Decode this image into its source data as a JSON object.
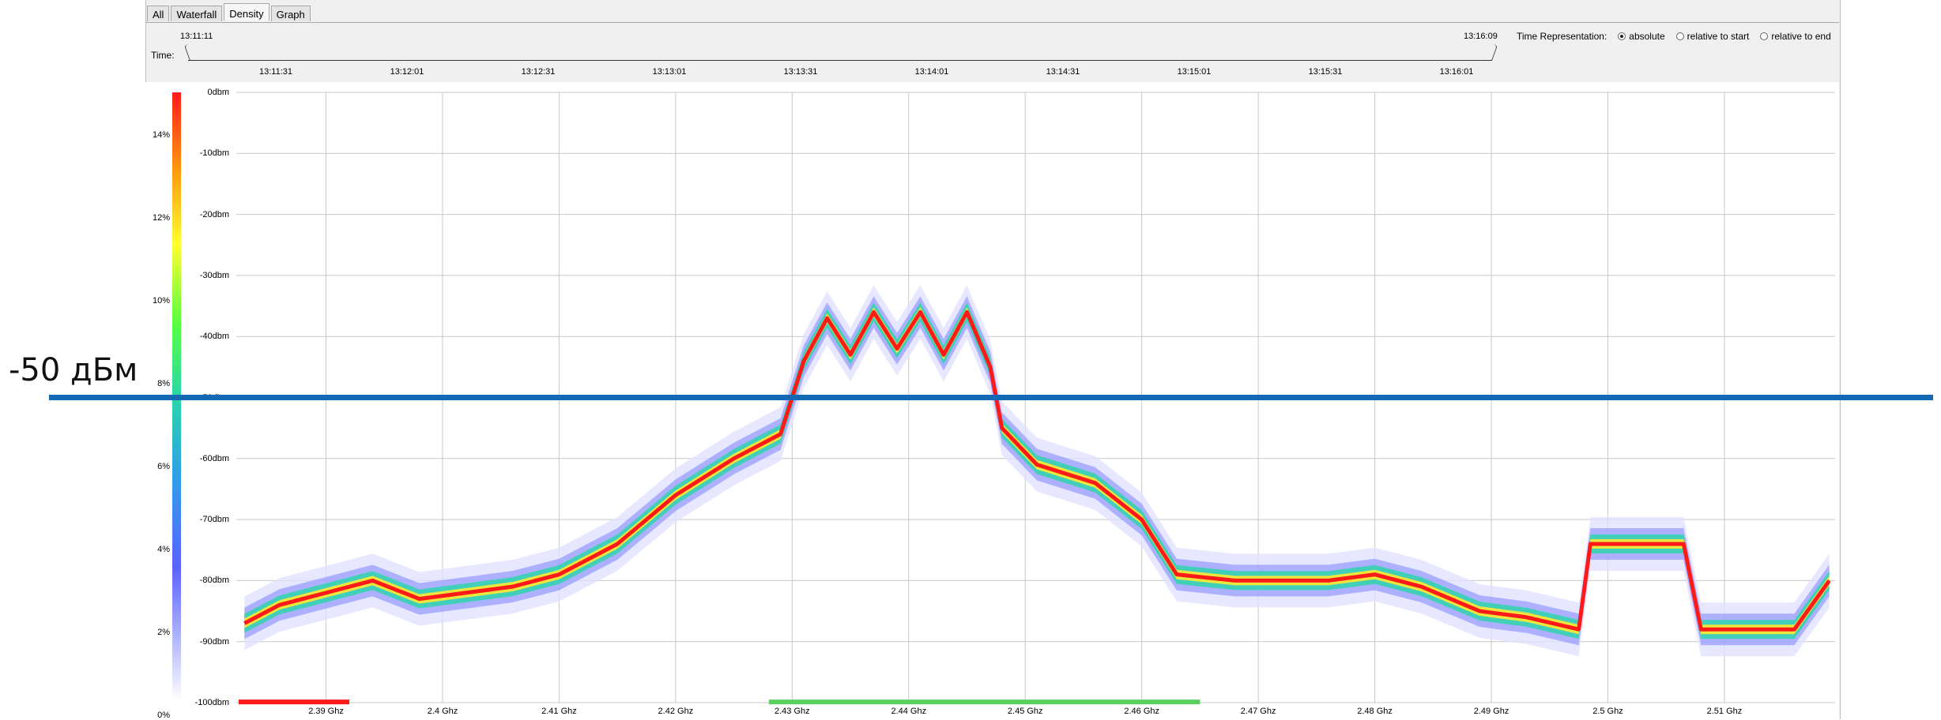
{
  "tabs": [
    "All",
    "Waterfall",
    "Density",
    "Graph"
  ],
  "active_tab": "Density",
  "time_bar": {
    "label": "Time:",
    "start": "13:11:11",
    "end": "13:16:09",
    "ticks": [
      "13:11:31",
      "13:12:01",
      "13:12:31",
      "13:13:01",
      "13:13:31",
      "13:14:01",
      "13:14:31",
      "13:15:01",
      "13:15:31",
      "13:16:01"
    ]
  },
  "time_representation": {
    "label": "Time Representation:",
    "options": [
      "absolute",
      "relative to start",
      "relative to end"
    ],
    "selected": "absolute"
  },
  "colorbar_labels": [
    "14%",
    "12%",
    "10%",
    "8%",
    "6%",
    "4%",
    "2%",
    "0%"
  ],
  "annotation": {
    "text": "-50 дБм",
    "line_color": "#1469b4"
  },
  "colors": {
    "low": "#ffffff",
    "mid_low": "#5a62ff",
    "mid": "#28d7a8",
    "mid_high": "#ffff30",
    "high": "#ff1a1a"
  },
  "chart_data": {
    "type": "heatmap",
    "title": "",
    "xlabel": "",
    "ylabel": "",
    "x_ticks": [
      "2.39 Ghz",
      "2.4 Ghz",
      "2.41 Ghz",
      "2.42 Ghz",
      "2.43 Ghz",
      "2.44 Ghz",
      "2.45 Ghz",
      "2.46 Ghz",
      "2.47 Ghz",
      "2.48 Ghz",
      "2.49 Ghz",
      "2.5 Ghz",
      "2.51 Ghz"
    ],
    "y_ticks": [
      "0dbm",
      "-10dbm",
      "-20dbm",
      "-30dbm",
      "-40dbm",
      "-50dbm",
      "-60dbm",
      "-70dbm",
      "-80dbm",
      "-90dbm",
      "-100dbm"
    ],
    "xlim": [
      2.3823,
      2.5195
    ],
    "ylim": [
      -100,
      0
    ],
    "grid": true,
    "colorbar_range_percent": [
      0,
      15
    ],
    "reference_line_dbm": -50,
    "trace": [
      {
        "freq": 2.383,
        "dbm": -87
      },
      {
        "freq": 2.386,
        "dbm": -84
      },
      {
        "freq": 2.39,
        "dbm": -82
      },
      {
        "freq": 2.394,
        "dbm": -80
      },
      {
        "freq": 2.398,
        "dbm": -83
      },
      {
        "freq": 2.402,
        "dbm": -82
      },
      {
        "freq": 2.406,
        "dbm": -81
      },
      {
        "freq": 2.41,
        "dbm": -79
      },
      {
        "freq": 2.415,
        "dbm": -74
      },
      {
        "freq": 2.42,
        "dbm": -66
      },
      {
        "freq": 2.425,
        "dbm": -60
      },
      {
        "freq": 2.429,
        "dbm": -56
      },
      {
        "freq": 2.431,
        "dbm": -44
      },
      {
        "freq": 2.433,
        "dbm": -37
      },
      {
        "freq": 2.435,
        "dbm": -43
      },
      {
        "freq": 2.437,
        "dbm": -36
      },
      {
        "freq": 2.439,
        "dbm": -42
      },
      {
        "freq": 2.441,
        "dbm": -36
      },
      {
        "freq": 2.443,
        "dbm": -43
      },
      {
        "freq": 2.445,
        "dbm": -36
      },
      {
        "freq": 2.447,
        "dbm": -45
      },
      {
        "freq": 2.448,
        "dbm": -55
      },
      {
        "freq": 2.451,
        "dbm": -61
      },
      {
        "freq": 2.456,
        "dbm": -64
      },
      {
        "freq": 2.46,
        "dbm": -70
      },
      {
        "freq": 2.463,
        "dbm": -79
      },
      {
        "freq": 2.468,
        "dbm": -80
      },
      {
        "freq": 2.472,
        "dbm": -80
      },
      {
        "freq": 2.476,
        "dbm": -80
      },
      {
        "freq": 2.48,
        "dbm": -79
      },
      {
        "freq": 2.484,
        "dbm": -81
      },
      {
        "freq": 2.489,
        "dbm": -85
      },
      {
        "freq": 2.493,
        "dbm": -86
      },
      {
        "freq": 2.4975,
        "dbm": -88
      },
      {
        "freq": 2.4985,
        "dbm": -74
      },
      {
        "freq": 2.5065,
        "dbm": -74
      },
      {
        "freq": 2.508,
        "dbm": -88
      },
      {
        "freq": 2.516,
        "dbm": -88
      },
      {
        "freq": 2.519,
        "dbm": -80
      }
    ]
  }
}
